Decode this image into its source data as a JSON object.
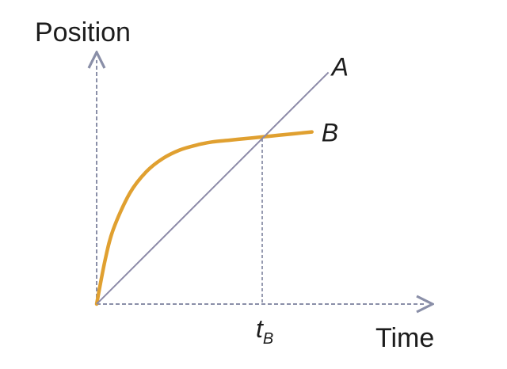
{
  "chart_data": {
    "type": "line",
    "title": "",
    "xlabel": "Time",
    "ylabel": "Position",
    "xlim": [
      0,
      1.6
    ],
    "ylim": [
      0,
      1.6
    ],
    "grid": false,
    "legend": "none",
    "series": [
      {
        "name": "A",
        "color": "#8c8aa8",
        "x": [
          0,
          1.4
        ],
        "y": [
          0,
          1.4
        ]
      },
      {
        "name": "B",
        "color": "#e0a030",
        "x": [
          0,
          0.05,
          0.1,
          0.2,
          0.3,
          0.4,
          0.5,
          0.6,
          0.7,
          0.8,
          0.9,
          1.0,
          1.1,
          1.2,
          1.3
        ],
        "y": [
          0,
          0.26,
          0.45,
          0.67,
          0.8,
          0.88,
          0.93,
          0.96,
          0.98,
          0.99,
          1.0,
          1.01,
          1.02,
          1.03,
          1.04
        ]
      }
    ],
    "annotations": [
      {
        "text": "t",
        "subscript": "B",
        "x": 1.0,
        "description": "crossing time where A and B meet, dashed guide to x-axis"
      }
    ]
  }
}
